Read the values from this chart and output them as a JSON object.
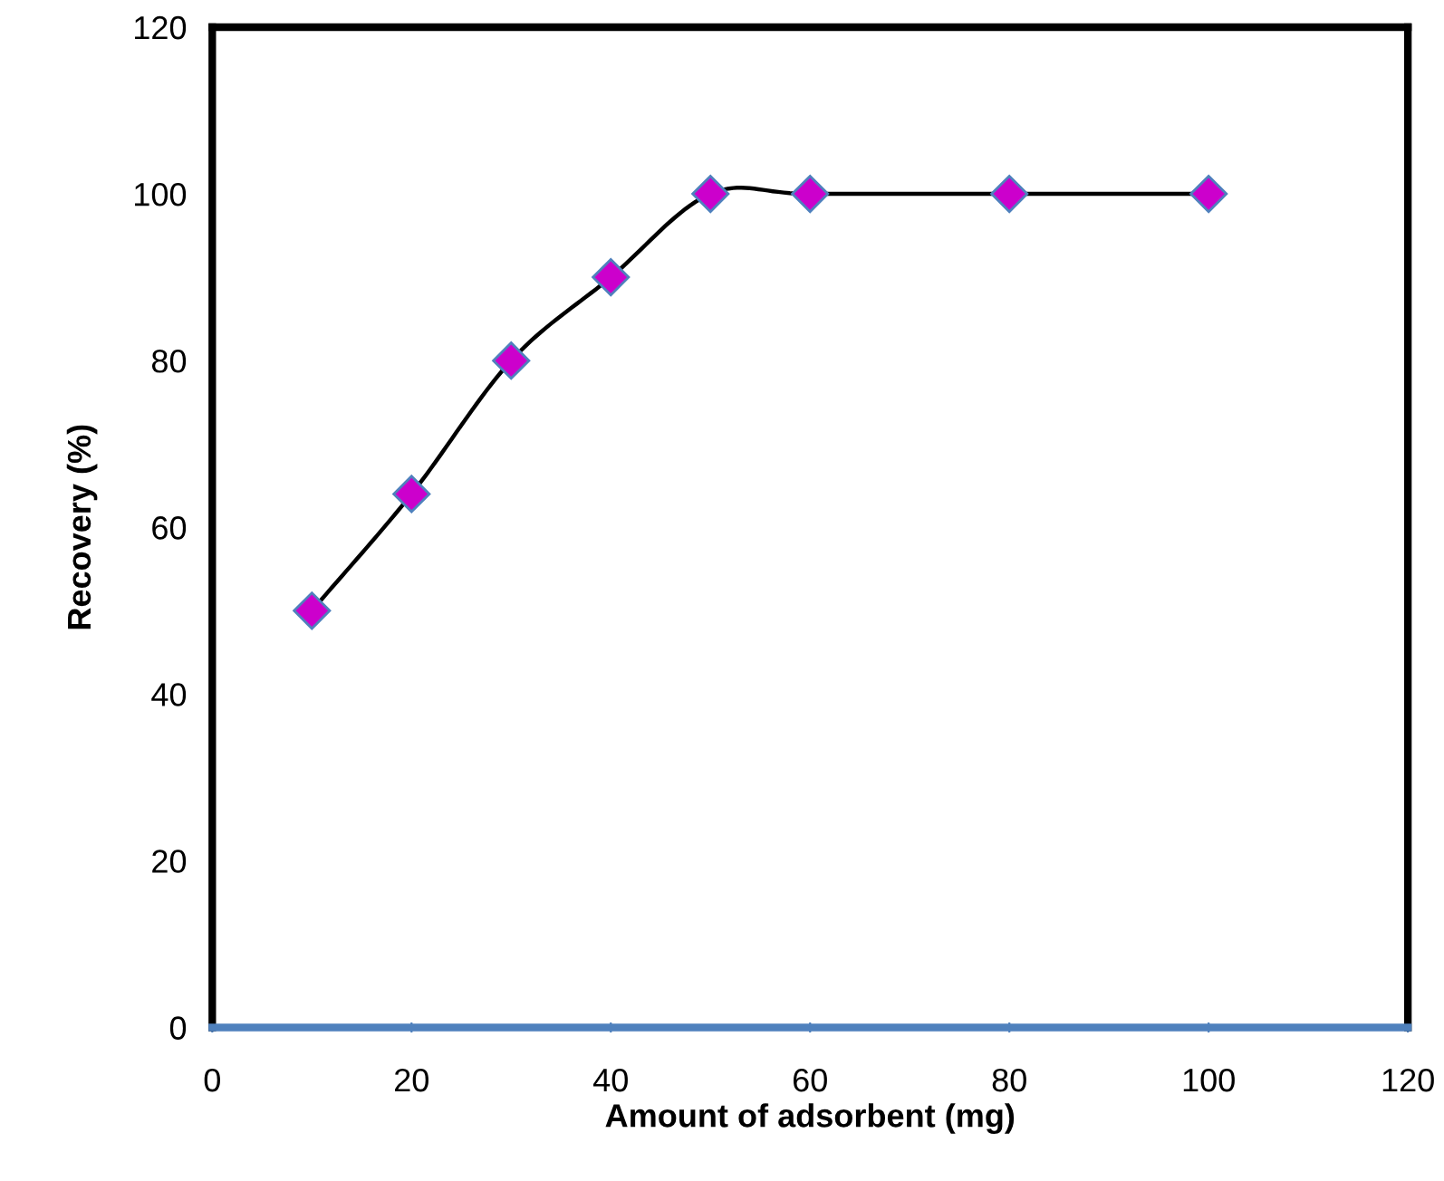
{
  "chart_data": {
    "type": "line",
    "xlabel": "Amount of adsorbent (mg)",
    "ylabel": "Recovery (%)",
    "x": [
      10,
      20,
      30,
      40,
      50,
      60,
      80,
      100
    ],
    "series": [
      {
        "color": "#cc00cc",
        "values": [
          50,
          64,
          80,
          90,
          100,
          100,
          100,
          100
        ]
      }
    ],
    "marker": "diamond",
    "line_style": "solid",
    "xlim": [
      0,
      120
    ],
    "xticks": [
      0,
      20,
      40,
      60,
      80,
      100,
      120
    ],
    "ylim": [
      0,
      120
    ],
    "yticks": [
      0,
      20,
      40,
      60,
      80,
      100,
      120
    ],
    "grid": false,
    "legend": false
  }
}
